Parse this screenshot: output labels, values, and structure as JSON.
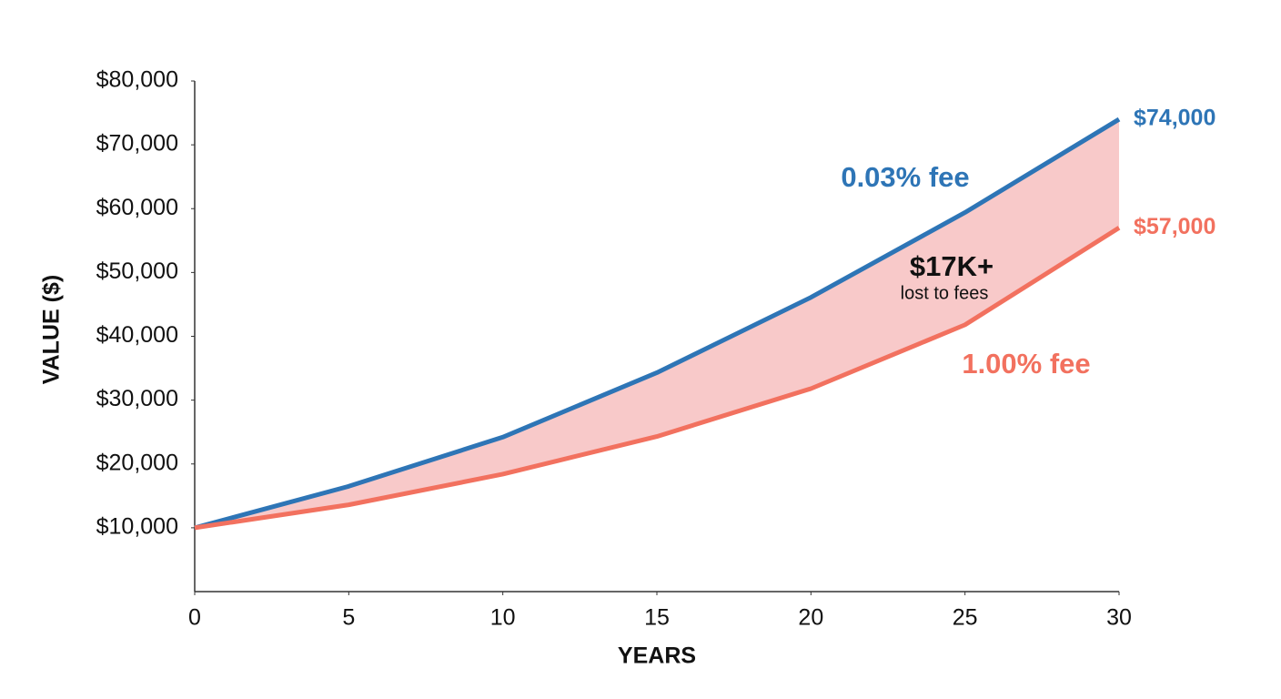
{
  "chart_data": {
    "type": "line",
    "x_label": "YEARS",
    "y_label": "VALUE ($)",
    "x": [
      0,
      5,
      10,
      15,
      20,
      25,
      30
    ],
    "series": [
      {
        "name": "0.03% fee",
        "color": "#2e75b6",
        "values": [
          10000,
          16500,
          24200,
          34300,
          46100,
          59400,
          74000
        ],
        "value_labels": [
          null,
          null,
          null,
          null,
          null,
          null,
          "$74,000"
        ]
      },
      {
        "name": "1.00% fee",
        "color": "#f2715f",
        "values": [
          10000,
          13600,
          18400,
          24300,
          31800,
          41800,
          57000
        ],
        "value_labels": [
          null,
          null,
          null,
          null,
          null,
          null,
          "$57,000"
        ]
      }
    ],
    "fill_between_color": "#f8c9c9",
    "annotations": [
      "$17K+",
      "lost to fees"
    ],
    "xlim": [
      0,
      30
    ],
    "xticks": [
      0,
      5,
      10,
      15,
      20,
      25,
      30
    ],
    "ylim": [
      0,
      80000
    ],
    "yticks": [
      {
        "value": 10000,
        "label": "$10,000"
      },
      {
        "value": 20000,
        "label": "$20,000"
      },
      {
        "value": 30000,
        "label": "$30,000"
      },
      {
        "value": 40000,
        "label": "$40,000"
      },
      {
        "value": 50000,
        "label": "$50,000"
      },
      {
        "value": 60000,
        "label": "$60,000"
      },
      {
        "value": 70000,
        "label": "$70,000"
      },
      {
        "value": 80000,
        "label": "$80,000"
      }
    ],
    "grid": false
  }
}
